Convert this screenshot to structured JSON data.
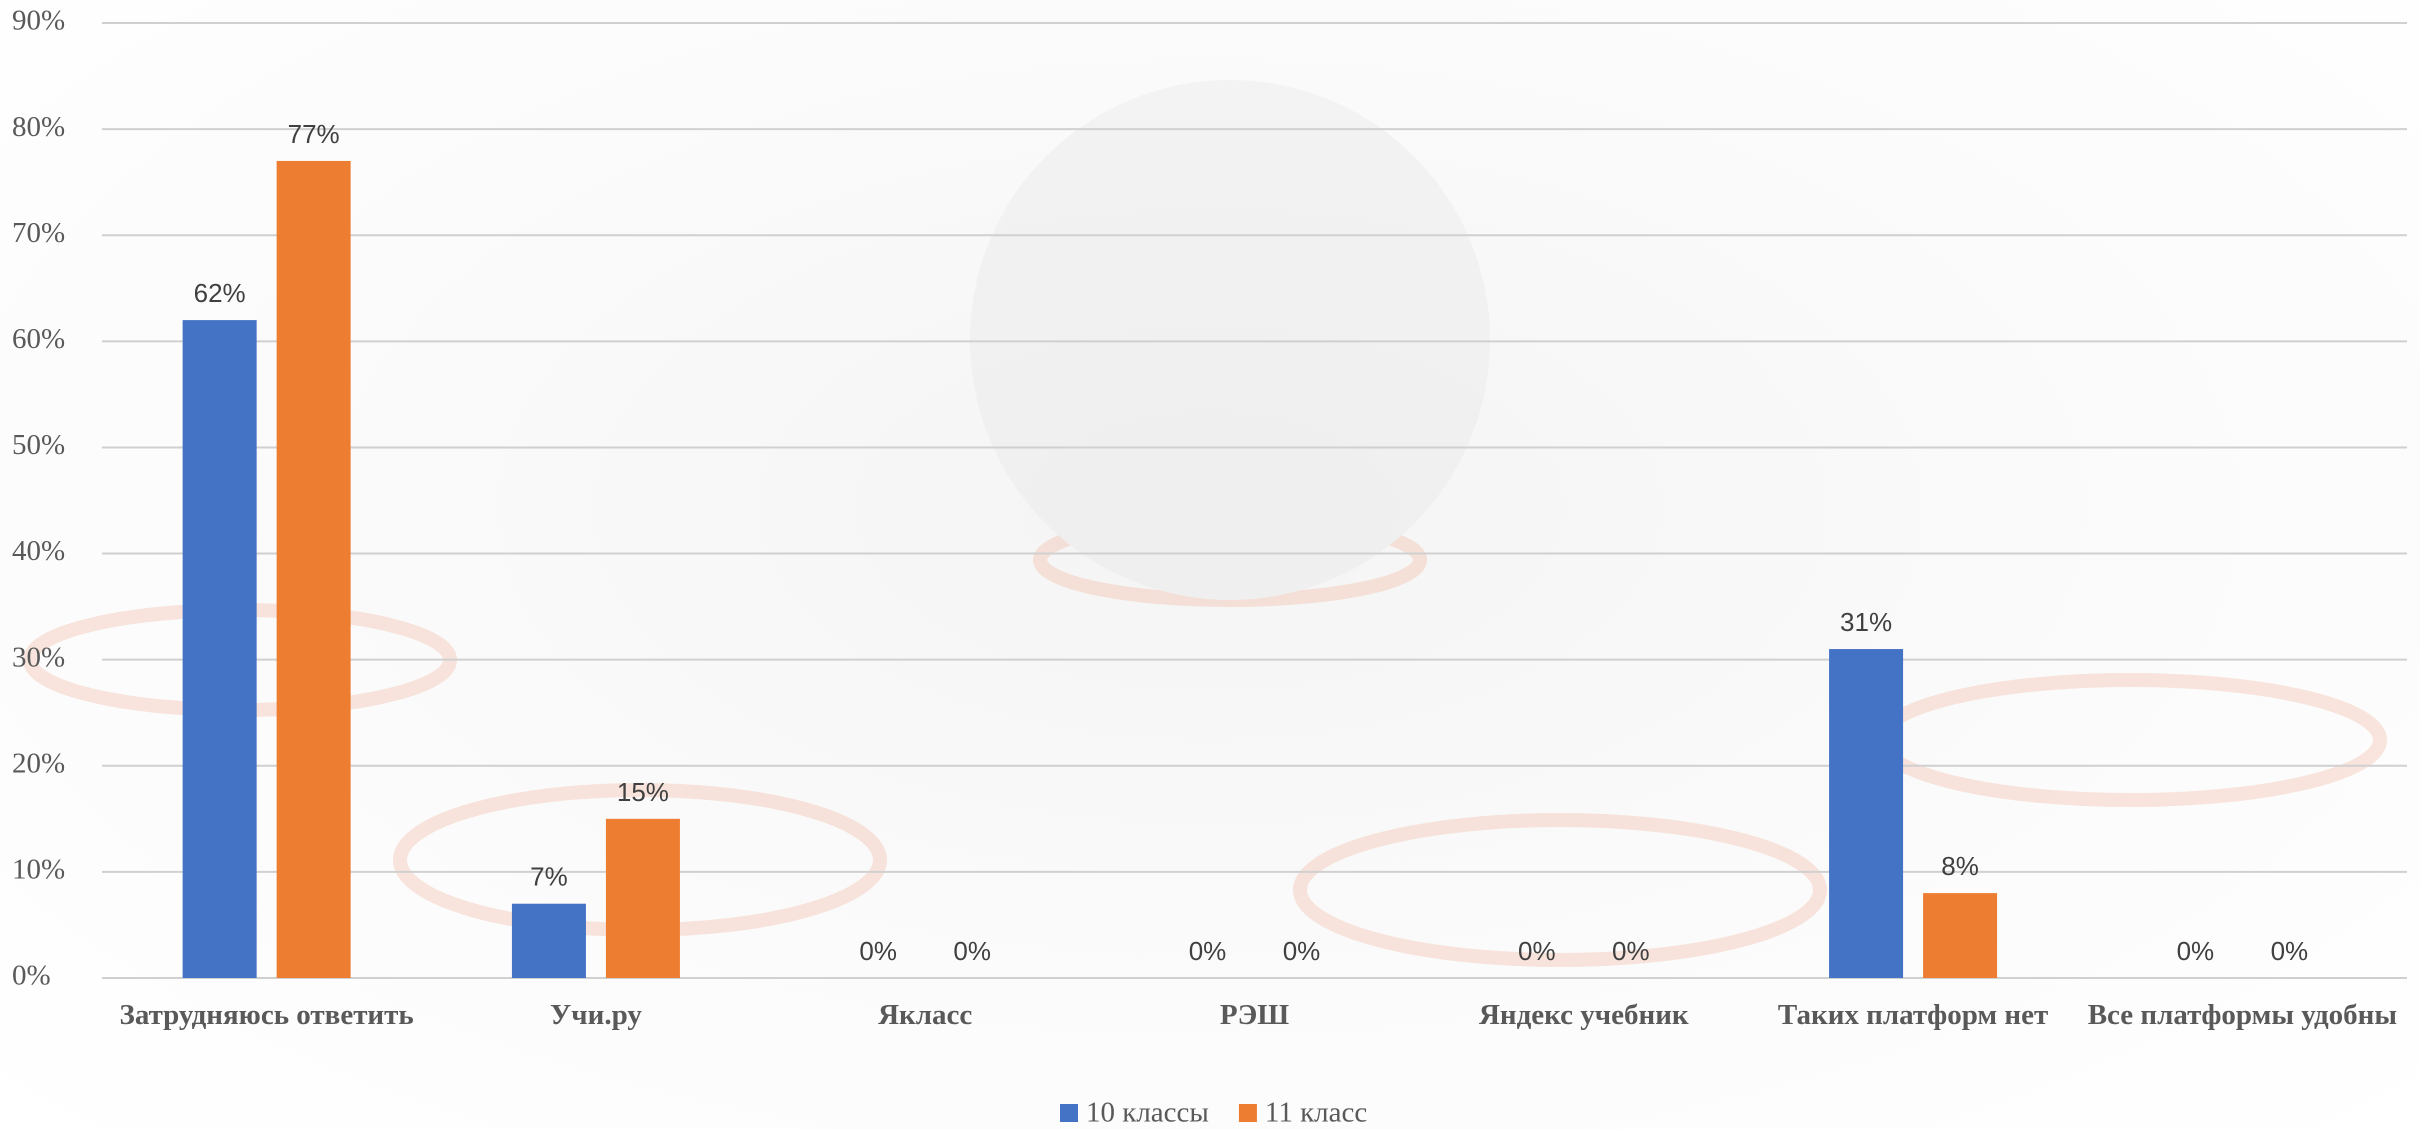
{
  "chart_data": {
    "type": "bar",
    "categories": [
      "Затрудняюсь ответить",
      "Учи.ру",
      "Якласс",
      "РЭШ",
      "Яндекс учебник",
      "Таких платформ нет",
      "Все платформы удобны"
    ],
    "series": [
      {
        "name": "10 классы",
        "color": "#4472c4",
        "values": [
          62,
          7,
          0,
          0,
          0,
          31,
          0
        ],
        "value_labels": [
          "62%",
          "7%",
          "0%",
          "0%",
          "0%",
          "31%",
          "0%"
        ]
      },
      {
        "name": "11 класс",
        "color": "#ed7d31",
        "values": [
          77,
          15,
          0,
          0,
          0,
          8,
          0
        ],
        "value_labels": [
          "77%",
          "15%",
          "0%",
          "0%",
          "0%",
          "8%",
          "0%"
        ]
      }
    ],
    "ylim": [
      0,
      90
    ],
    "yticks": [
      {
        "value": 0,
        "label": "0%"
      },
      {
        "value": 10,
        "label": "10%"
      },
      {
        "value": 20,
        "label": "20%"
      },
      {
        "value": 30,
        "label": "30%"
      },
      {
        "value": 40,
        "label": "40%"
      },
      {
        "value": 50,
        "label": "50%"
      },
      {
        "value": 60,
        "label": "60%"
      },
      {
        "value": 70,
        "label": "70%"
      },
      {
        "value": 80,
        "label": "80%"
      },
      {
        "value": 90,
        "label": "90%"
      }
    ],
    "grid": true
  }
}
